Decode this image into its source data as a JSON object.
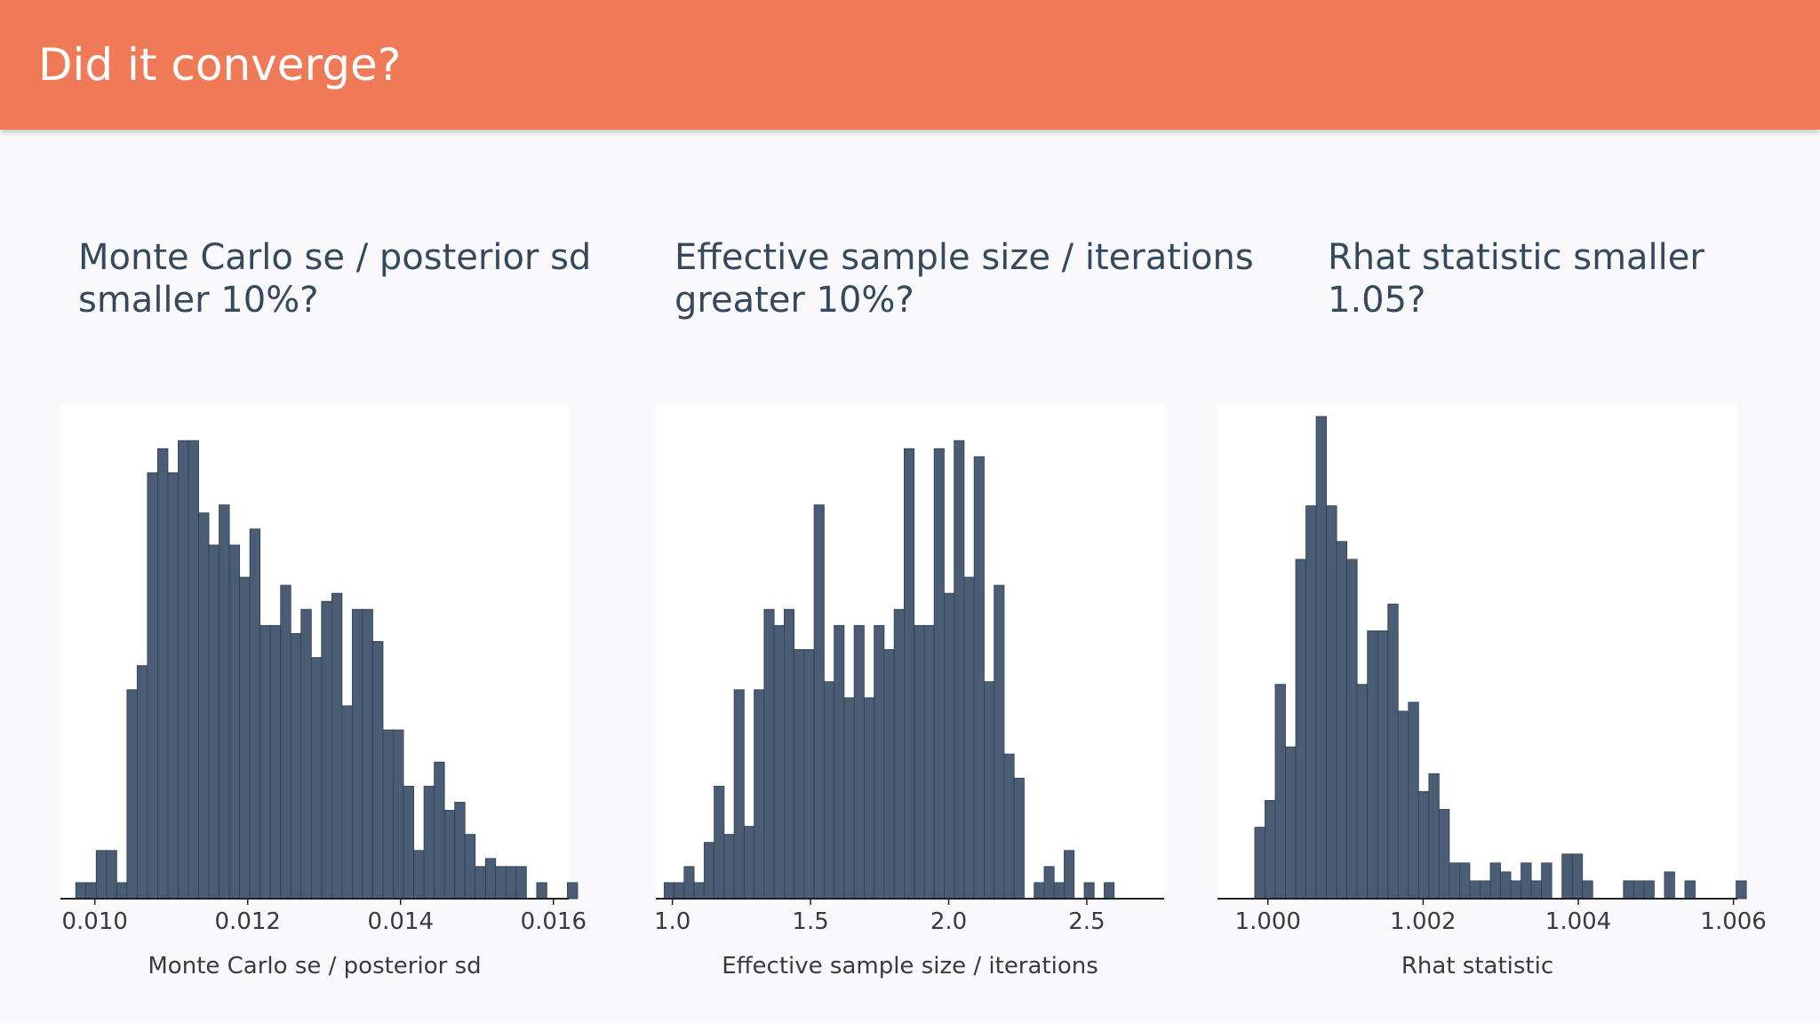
{
  "header": {
    "title": "Did it converge?"
  },
  "questions": [
    {
      "line1": "Monte Carlo se / posterior sd",
      "line2": "smaller 10%?"
    },
    {
      "line1": "Effective sample size / iterations",
      "line2": "greater 10%?"
    },
    {
      "line1": "Rhat statistic smaller",
      "line2": "1.05?"
    }
  ],
  "colors": {
    "header": "#f07a58",
    "bar": "#4a5d75",
    "bar_edge": "#2f3f52",
    "title_text": "#34495e"
  },
  "chart_data": [
    {
      "type": "bar",
      "xlabel": "Monte Carlo se / posterior sd",
      "ticks": [
        {
          "value": 0.01,
          "label": "0.010"
        },
        {
          "value": 0.012,
          "label": "0.012"
        },
        {
          "value": 0.014,
          "label": "0.014"
        },
        {
          "value": 0.016,
          "label": "0.016"
        }
      ],
      "xlim": [
        0.00955,
        0.0162
      ],
      "bin_start": 0.00975,
      "bin_width": 0.000134,
      "counts": [
        2,
        2,
        6,
        6,
        2,
        26,
        29,
        53,
        56,
        53,
        57,
        57,
        48,
        44,
        49,
        44,
        40,
        46,
        34,
        34,
        39,
        33,
        36,
        30,
        37,
        38,
        24,
        36,
        36,
        32,
        21,
        21,
        14,
        6,
        14,
        17,
        11,
        12,
        8,
        4,
        5,
        4,
        4,
        4,
        0,
        2,
        0,
        0,
        2
      ],
      "ylim": [
        0,
        60
      ],
      "grid": false
    },
    {
      "type": "bar",
      "xlabel": "Effective sample size / iterations",
      "ticks": [
        {
          "value": 1.0,
          "label": "1.0"
        },
        {
          "value": 1.5,
          "label": "1.5"
        },
        {
          "value": 2.0,
          "label": "2.0"
        },
        {
          "value": 2.5,
          "label": "2.5"
        }
      ],
      "xlim": [
        0.94,
        2.78
      ],
      "bin_start": 0.97,
      "bin_width": 0.0362,
      "counts": [
        2,
        2,
        4,
        2,
        7,
        14,
        8,
        26,
        9,
        26,
        36,
        34,
        36,
        31,
        31,
        49,
        27,
        34,
        25,
        34,
        25,
        34,
        31,
        36,
        56,
        34,
        34,
        56,
        38,
        57,
        40,
        55,
        27,
        39,
        18,
        15,
        0,
        2,
        4,
        2,
        6,
        0,
        2,
        0,
        2
      ],
      "ylim": [
        0,
        60
      ],
      "grid": false
    },
    {
      "type": "bar",
      "xlabel": "Rhat statistic",
      "ticks": [
        {
          "value": 1.0,
          "label": "1.000"
        },
        {
          "value": 1.002,
          "label": "1.002"
        },
        {
          "value": 1.004,
          "label": "1.004"
        },
        {
          "value": 1.006,
          "label": "1.006"
        }
      ],
      "xlim": [
        0.99935,
        1.00605
      ],
      "bin_start": 0.99983,
      "bin_width": 0.000132,
      "counts": [
        8,
        11,
        24,
        17,
        38,
        44,
        54,
        44,
        40,
        38,
        24,
        30,
        30,
        33,
        21,
        22,
        12,
        14,
        10,
        4,
        4,
        2,
        2,
        4,
        3,
        2,
        4,
        2,
        4,
        0,
        5,
        5,
        2,
        0,
        0,
        0,
        2,
        2,
        2,
        0,
        3,
        0,
        2,
        0,
        0,
        0,
        0,
        2,
        0
      ],
      "ylim": [
        0,
        54
      ],
      "grid": false
    }
  ]
}
